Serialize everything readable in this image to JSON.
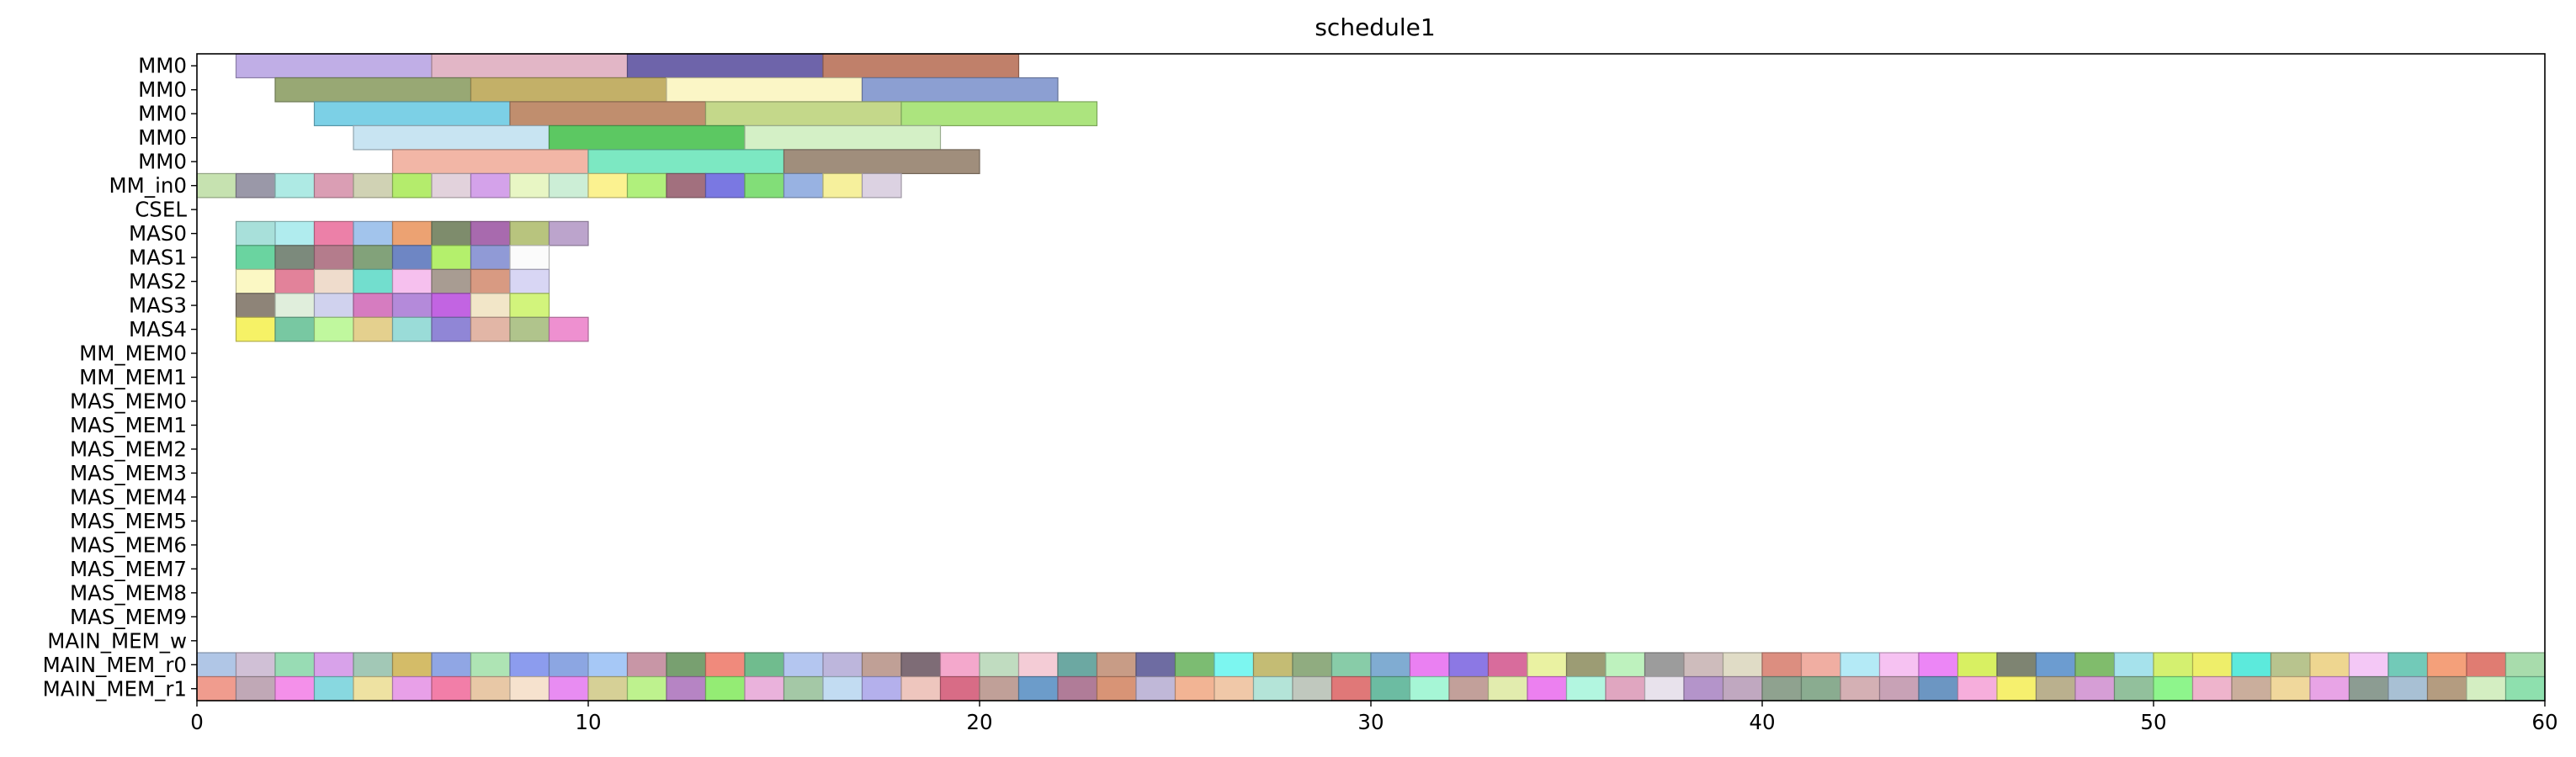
{
  "chart_data": {
    "type": "gantt",
    "title": "schedule1",
    "xlabel": "",
    "ylabel": "",
    "xlim": [
      0,
      60
    ],
    "xticks": [
      0,
      10,
      20,
      30,
      40,
      50,
      60
    ],
    "grid": false,
    "rows": [
      "MM0",
      "MM0",
      "MM0",
      "MM0",
      "MM0",
      "MM_in0",
      "CSEL",
      "MAS0",
      "MAS1",
      "MAS2",
      "MAS3",
      "MAS4",
      "MM_MEM0",
      "MM_MEM1",
      "MAS_MEM0",
      "MAS_MEM1",
      "MAS_MEM2",
      "MAS_MEM3",
      "MAS_MEM4",
      "MAS_MEM5",
      "MAS_MEM6",
      "MAS_MEM7",
      "MAS_MEM8",
      "MAS_MEM9",
      "MAIN_MEM_w",
      "MAIN_MEM_r0",
      "MAIN_MEM_r1"
    ],
    "tasks": [
      {
        "row": 0,
        "start": 1,
        "end": 6,
        "color": "#c0aee6"
      },
      {
        "row": 0,
        "start": 6,
        "end": 11,
        "color": "#e2b6c6"
      },
      {
        "row": 0,
        "start": 11,
        "end": 16,
        "color": "#6e64aa"
      },
      {
        "row": 0,
        "start": 16,
        "end": 21,
        "color": "#c0806a"
      },
      {
        "row": 1,
        "start": 2,
        "end": 7,
        "color": "#98a874"
      },
      {
        "row": 1,
        "start": 7,
        "end": 12,
        "color": "#c3b068"
      },
      {
        "row": 1,
        "start": 12,
        "end": 17,
        "color": "#fbf6c6"
      },
      {
        "row": 1,
        "start": 17,
        "end": 22,
        "color": "#8c9fd2"
      },
      {
        "row": 2,
        "start": 3,
        "end": 8,
        "color": "#7cd0e6"
      },
      {
        "row": 2,
        "start": 8,
        "end": 13,
        "color": "#c08e6e"
      },
      {
        "row": 2,
        "start": 13,
        "end": 18,
        "color": "#c4d88a"
      },
      {
        "row": 2,
        "start": 18,
        "end": 23,
        "color": "#ace47e"
      },
      {
        "row": 3,
        "start": 4,
        "end": 9,
        "color": "#c8e4f2"
      },
      {
        "row": 3,
        "start": 9,
        "end": 14,
        "color": "#5cc862"
      },
      {
        "row": 3,
        "start": 14,
        "end": 19,
        "color": "#d4f0c6"
      },
      {
        "row": 4,
        "start": 5,
        "end": 10,
        "color": "#f2b6a6"
      },
      {
        "row": 4,
        "start": 10,
        "end": 15,
        "color": "#7ce8c2"
      },
      {
        "row": 4,
        "start": 15,
        "end": 20,
        "color": "#a08e7c"
      },
      {
        "row": 5,
        "start": 0,
        "end": 1,
        "color": "#c6e2b0"
      },
      {
        "row": 5,
        "start": 1,
        "end": 2,
        "color": "#9a98a8"
      },
      {
        "row": 5,
        "start": 2,
        "end": 3,
        "color": "#aeeae4"
      },
      {
        "row": 5,
        "start": 3,
        "end": 4,
        "color": "#da9eb4"
      },
      {
        "row": 5,
        "start": 4,
        "end": 5,
        "color": "#d0d2b4"
      },
      {
        "row": 5,
        "start": 5,
        "end": 6,
        "color": "#b4ec6c"
      },
      {
        "row": 5,
        "start": 6,
        "end": 7,
        "color": "#e2d2dc"
      },
      {
        "row": 5,
        "start": 7,
        "end": 8,
        "color": "#d4a2ea"
      },
      {
        "row": 5,
        "start": 8,
        "end": 9,
        "color": "#e8f6c4"
      },
      {
        "row": 5,
        "start": 9,
        "end": 10,
        "color": "#cceed6"
      },
      {
        "row": 5,
        "start": 10,
        "end": 11,
        "color": "#fbf290"
      },
      {
        "row": 5,
        "start": 11,
        "end": 12,
        "color": "#b0f07c"
      },
      {
        "row": 5,
        "start": 12,
        "end": 13,
        "color": "#a2707e"
      },
      {
        "row": 5,
        "start": 13,
        "end": 14,
        "color": "#7a78e2"
      },
      {
        "row": 5,
        "start": 14,
        "end": 15,
        "color": "#82de78"
      },
      {
        "row": 5,
        "start": 15,
        "end": 16,
        "color": "#98b2e2"
      },
      {
        "row": 5,
        "start": 16,
        "end": 17,
        "color": "#f6f09c"
      },
      {
        "row": 5,
        "start": 17,
        "end": 18,
        "color": "#dcd2e2"
      },
      {
        "row": 7,
        "start": 1,
        "end": 2,
        "color": "#a8e0da"
      },
      {
        "row": 7,
        "start": 2,
        "end": 3,
        "color": "#b0ecee"
      },
      {
        "row": 7,
        "start": 3,
        "end": 4,
        "color": "#ec80a8"
      },
      {
        "row": 7,
        "start": 4,
        "end": 5,
        "color": "#a2c4ec"
      },
      {
        "row": 7,
        "start": 5,
        "end": 6,
        "color": "#eca272"
      },
      {
        "row": 7,
        "start": 6,
        "end": 7,
        "color": "#7e8c6c"
      },
      {
        "row": 7,
        "start": 7,
        "end": 8,
        "color": "#a86aae"
      },
      {
        "row": 7,
        "start": 8,
        "end": 9,
        "color": "#b8c47e"
      },
      {
        "row": 7,
        "start": 9,
        "end": 10,
        "color": "#bca4cc"
      },
      {
        "row": 8,
        "start": 1,
        "end": 2,
        "color": "#6ad4a0"
      },
      {
        "row": 8,
        "start": 2,
        "end": 3,
        "color": "#7c8a7c"
      },
      {
        "row": 8,
        "start": 3,
        "end": 4,
        "color": "#b47c8c"
      },
      {
        "row": 8,
        "start": 4,
        "end": 5,
        "color": "#82a27a"
      },
      {
        "row": 8,
        "start": 5,
        "end": 6,
        "color": "#6e86c4"
      },
      {
        "row": 8,
        "start": 6,
        "end": 7,
        "color": "#b4f06c"
      },
      {
        "row": 8,
        "start": 7,
        "end": 8,
        "color": "#909ad6"
      },
      {
        "row": 8,
        "start": 8,
        "end": 9,
        "color": "#fbfbfb"
      },
      {
        "row": 9,
        "start": 1,
        "end": 2,
        "color": "#fbf8c4"
      },
      {
        "row": 9,
        "start": 2,
        "end": 3,
        "color": "#e2829a"
      },
      {
        "row": 9,
        "start": 3,
        "end": 4,
        "color": "#efdccc"
      },
      {
        "row": 9,
        "start": 4,
        "end": 5,
        "color": "#72dece"
      },
      {
        "row": 9,
        "start": 5,
        "end": 6,
        "color": "#f6c0ee"
      },
      {
        "row": 9,
        "start": 6,
        "end": 7,
        "color": "#a89c92"
      },
      {
        "row": 9,
        "start": 7,
        "end": 8,
        "color": "#d89a82"
      },
      {
        "row": 9,
        "start": 8,
        "end": 9,
        "color": "#d8d6f4"
      },
      {
        "row": 10,
        "start": 1,
        "end": 2,
        "color": "#8e8478"
      },
      {
        "row": 10,
        "start": 2,
        "end": 3,
        "color": "#e0eedc"
      },
      {
        "row": 10,
        "start": 3,
        "end": 4,
        "color": "#d0d2ee"
      },
      {
        "row": 10,
        "start": 4,
        "end": 5,
        "color": "#d67cc0"
      },
      {
        "row": 10,
        "start": 5,
        "end": 6,
        "color": "#b48ada"
      },
      {
        "row": 10,
        "start": 6,
        "end": 7,
        "color": "#c264e2"
      },
      {
        "row": 10,
        "start": 7,
        "end": 8,
        "color": "#f2e6c8"
      },
      {
        "row": 10,
        "start": 8,
        "end": 9,
        "color": "#d2f47c"
      },
      {
        "row": 11,
        "start": 1,
        "end": 2,
        "color": "#f6f266"
      },
      {
        "row": 11,
        "start": 2,
        "end": 3,
        "color": "#78c8a2"
      },
      {
        "row": 11,
        "start": 3,
        "end": 4,
        "color": "#c0f89e"
      },
      {
        "row": 11,
        "start": 4,
        "end": 5,
        "color": "#e4d08e"
      },
      {
        "row": 11,
        "start": 5,
        "end": 6,
        "color": "#9adcd8"
      },
      {
        "row": 11,
        "start": 6,
        "end": 7,
        "color": "#9086d6"
      },
      {
        "row": 11,
        "start": 7,
        "end": 8,
        "color": "#e2b6a6"
      },
      {
        "row": 11,
        "start": 8,
        "end": 9,
        "color": "#b0c48c"
      },
      {
        "row": 11,
        "start": 9,
        "end": 10,
        "color": "#ee90d0"
      }
    ],
    "main_mem_r0_colors": [
      "#b0c6e6",
      "#d0c0d6",
      "#98dcb4",
      "#d8a2ea",
      "#a2c8b6",
      "#d4bc68",
      "#90a6e4",
      "#aee4b4",
      "#8c9cee",
      "#8ca6e2",
      "#a6c8f6",
      "#c896a6",
      "#78a070",
      "#f08a7c",
      "#70bc8e",
      "#b4c6f0",
      "#bdb6dc",
      "#c0a096",
      "#7e6c76",
      "#f4a8cc",
      "#c0dcc0",
      "#f4ccd6",
      "#6ca8a2",
      "#c89c86",
      "#6e6ca2",
      "#7cbc72",
      "#7cf6f0",
      "#c4bc74",
      "#90ac80",
      "#88cca8",
      "#80acd2",
      "#ea80f2",
      "#8c78e4",
      "#d86c9c",
      "#eaf2a2",
      "#9c9c74",
      "#bef2be",
      "#9c9c9c",
      "#cebcbc",
      "#e0dcc6",
      "#dc8e80",
      "#f0aea2",
      "#b4eaf6",
      "#f6c2f2",
      "#ec86f6",
      "#d8f062",
      "#7e8472",
      "#6c9cd0",
      "#80bc6c",
      "#a6e2ec",
      "#d4f070",
      "#eeee6a",
      "#5ceadc",
      "#b8c48e",
      "#eed690",
      "#f4c8f6",
      "#72cab8",
      "#f4a07a",
      "#e07c72",
      "#a8dcac"
    ],
    "main_mem_r1_colors": [
      "#f09c8e",
      "#c0a8b6",
      "#f490ea",
      "#88d8e0",
      "#eee2a2",
      "#e8a0e8",
      "#f27ea8",
      "#e8c8a6",
      "#f6e2ce",
      "#e88cf2",
      "#d6d096",
      "#bef28e",
      "#b684c4",
      "#94ec74",
      "#eab2dc",
      "#a4c8a6",
      "#c2dcf2",
      "#b4b0ec",
      "#eec6be",
      "#d86c86",
      "#c0a098",
      "#6c9cca",
      "#b07c98",
      "#d89476",
      "#c0b8d8",
      "#f2b494",
      "#f0c8a8",
      "#b4e4d8",
      "#c0c8be",
      "#e07878",
      "#6cbca2",
      "#a6f6d6",
      "#c2a09a",
      "#e2ecae",
      "#ec80f0",
      "#b2f6e0",
      "#e0a6c0",
      "#e8e2ec",
      "#b494ca",
      "#c0a8c0",
      "#8fa28f",
      "#8aac90",
      "#d4b0b4",
      "#c8a2b6",
      "#6c96c2",
      "#f6aedc",
      "#f6f06e",
      "#bab08e",
      "#d69ed6",
      "#92c09c",
      "#8ef58c",
      "#eeb4cc",
      "#caae9c",
      "#f0d89c",
      "#e8a4e6",
      "#8c9c92",
      "#a8c0d4",
      "#b49c80",
      "#d4eec2",
      "#8ee0ae"
    ]
  }
}
